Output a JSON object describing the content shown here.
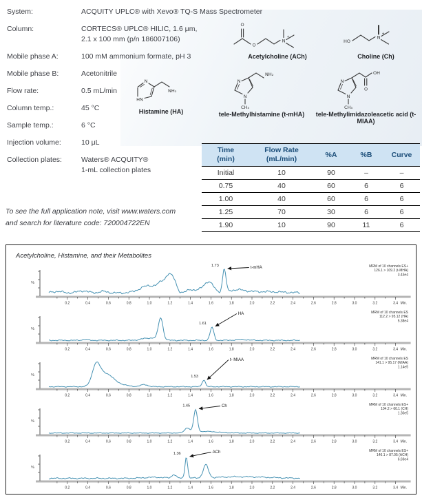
{
  "colors": {
    "trace": "#4792b3",
    "table_header_bg": "#cfe3f3",
    "table_header_text": "#1c4e79",
    "body_text": "#3f4147"
  },
  "method": {
    "rows": [
      {
        "label": "System:",
        "value": "ACQUITY UPLC® with Xevo® TQ-S Mass Spectrometer"
      },
      {
        "label": "Column:",
        "value": "CORTECS® UPLC® HILIC, 1.6 μm,\n2.1 x 100 mm (p/n 186007106)"
      },
      {
        "label": "Mobile phase A:",
        "value": "100 mM ammonium formate, pH 3"
      },
      {
        "label": "Mobile phase B:",
        "value": "Acetonitrile"
      },
      {
        "label": "Flow rate:",
        "value": "0.5 mL/min"
      },
      {
        "label": "Column temp.:",
        "value": "45 °C"
      },
      {
        "label": "Sample temp.:",
        "value": "6 °C"
      },
      {
        "label": "Injection volume:",
        "value": "10 μL"
      },
      {
        "label": "Collection plates:",
        "value": "Waters® ACQUITY®\n1-mL collection plates"
      }
    ]
  },
  "note": {
    "line1": "To see the full application note, visit www.waters.com",
    "line2": "and search for literature code: 720004722EN"
  },
  "structures": [
    {
      "caption": "Acetylcholine (ACh)",
      "atoms": [
        "O",
        "O",
        "N",
        "+"
      ]
    },
    {
      "caption": "Choline (Ch)",
      "atoms": [
        "HO",
        "N",
        "+"
      ]
    },
    {
      "caption": "Histamine (HA)",
      "atoms": [
        "N",
        "HN",
        "NH₂"
      ]
    },
    {
      "caption": "tele-Methylhistamine (t-mHA)",
      "atoms": [
        "N",
        "N",
        "CH₃",
        "NH₂"
      ]
    },
    {
      "caption": "tele-Methylimidazoleacetic acid (t-MIAA)",
      "atoms": [
        "N",
        "N",
        "CH₃",
        "O",
        "OH"
      ]
    }
  ],
  "gradient_table": {
    "headers": [
      "Time\n(min)",
      "Flow Rate\n(mL/min)",
      "%A",
      "%B",
      "Curve"
    ],
    "rows": [
      [
        "Initial",
        "10",
        "90",
        "–",
        "–"
      ],
      [
        "0.75",
        "40",
        "60",
        "6",
        "6"
      ],
      [
        "1.00",
        "40",
        "60",
        "6",
        "6"
      ],
      [
        "1.25",
        "70",
        "30",
        "6",
        "6"
      ],
      [
        "1.90",
        "10",
        "90",
        "11",
        "6"
      ]
    ]
  },
  "chart_data": {
    "type": "line",
    "title": "Acetylcholine, Histamine, and their Metabolites",
    "x_unit": "Min.",
    "y_label": "%",
    "x_range": [
      0,
      3.4
    ],
    "x_tick_step": 0.2,
    "grid": false,
    "traces": [
      {
        "analyte": "t-mHA",
        "rt": 1.73,
        "rt_label": "1.73",
        "annotation": [
          "MRM of 10 channels ES+",
          "126.1 > 109.2 (t-MHA)",
          "3.43e4"
        ],
        "base": 0.07,
        "noise": 0.05,
        "end": 2.47,
        "seed": 1,
        "peaks": [
          [
            0.1,
            0.06,
            0.05
          ],
          [
            0.35,
            0.08,
            0.05
          ],
          [
            0.55,
            0.06,
            0.04
          ],
          [
            1.0,
            0.28,
            0.09
          ],
          [
            1.13,
            0.34,
            0.04
          ],
          [
            1.19,
            0.5,
            0.028
          ],
          [
            1.24,
            0.44,
            0.028
          ],
          [
            1.4,
            0.12,
            0.035
          ],
          [
            1.5,
            0.1,
            0.05
          ],
          [
            1.58,
            0.4,
            0.045
          ],
          [
            1.73,
            0.9,
            0.016
          ],
          [
            1.85,
            0.1,
            0.08
          ],
          [
            2.1,
            0.05,
            0.2
          ]
        ]
      },
      {
        "analyte": "HA",
        "rt": 1.61,
        "rt_label": "1.61",
        "annotation": [
          "MRM of 10 channels ES",
          "112.2 > 95.12 (HA)",
          "5.38e4"
        ],
        "base": 0.035,
        "noise": 0.025,
        "end": 2.47,
        "seed": 2,
        "peaks": [
          [
            0.37,
            0.03,
            0.03
          ],
          [
            0.95,
            0.05,
            0.05
          ],
          [
            1.05,
            0.08,
            0.06
          ],
          [
            1.11,
            0.82,
            0.022
          ],
          [
            1.61,
            0.5,
            0.018
          ],
          [
            1.9,
            0.03,
            0.06
          ]
        ]
      },
      {
        "analyte": "t- MIAA",
        "rt": 1.53,
        "rt_label": "1.53",
        "annotation": [
          "MRM of 10 channels ES",
          "141.1 > 95.17 (MIAA)",
          "1.14e5"
        ],
        "base": 0.03,
        "noise": 0.02,
        "end": 2.47,
        "seed": 3,
        "peaks": [
          [
            0.48,
            0.75,
            0.038
          ],
          [
            0.57,
            0.42,
            0.065
          ],
          [
            0.66,
            0.12,
            0.09
          ],
          [
            0.95,
            0.08,
            0.035
          ],
          [
            1.53,
            0.26,
            0.016
          ]
        ]
      },
      {
        "analyte": "Ch",
        "rt": 1.45,
        "rt_label": "1.45",
        "annotation": [
          "MRM of 10 channels ES+",
          "104.2 > 60.1 (CH)",
          "1.30e5"
        ],
        "base": 0.025,
        "noise": 0.015,
        "end": 2.47,
        "seed": 4,
        "peaks": [
          [
            1.37,
            0.18,
            0.025
          ],
          [
            1.45,
            0.85,
            0.018
          ],
          [
            1.55,
            0.06,
            0.12
          ]
        ]
      },
      {
        "analyte": "ACh",
        "rt": 1.36,
        "rt_label": "1.36",
        "annotation": [
          "MRM of 10 channels ES+",
          "146.1 > 87.05 (ACH)",
          "6.69e4"
        ],
        "base": 0.05,
        "noise": 0.03,
        "end": 2.47,
        "seed": 5,
        "peaks": [
          [
            1.05,
            0.04,
            0.1
          ],
          [
            1.24,
            0.14,
            0.02
          ],
          [
            1.36,
            0.82,
            0.013
          ],
          [
            1.55,
            0.5,
            0.025
          ],
          [
            1.9,
            0.06,
            0.25
          ]
        ]
      }
    ]
  }
}
